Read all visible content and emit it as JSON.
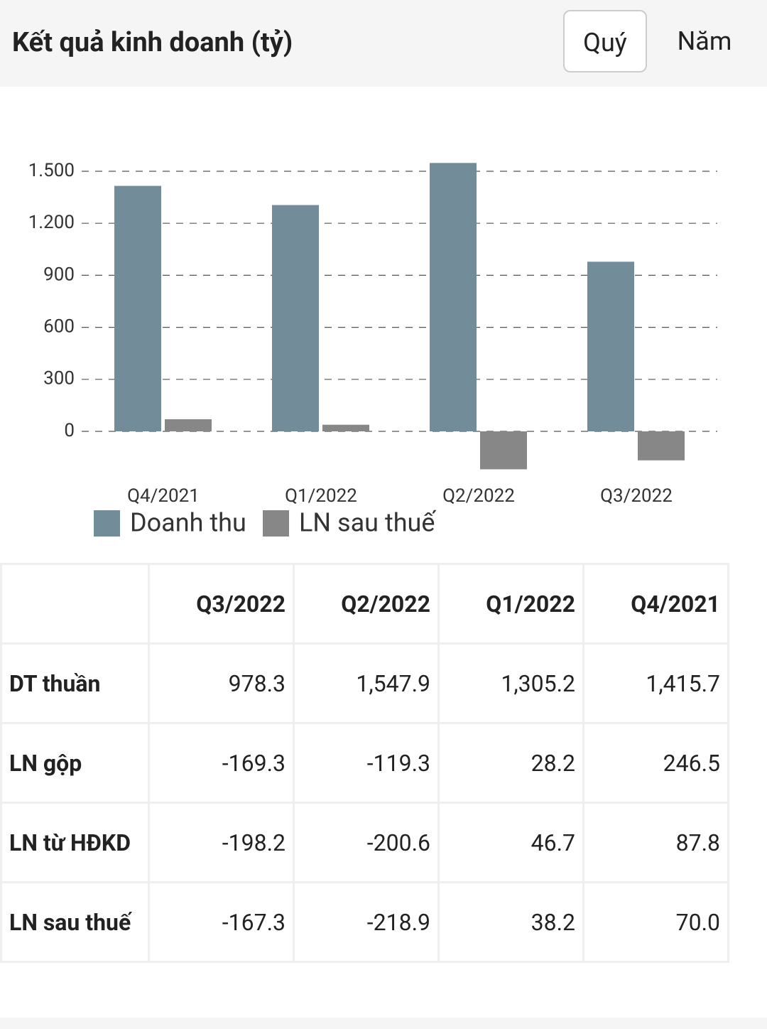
{
  "header": {
    "title": "Kết quả kinh doanh (tỷ)",
    "tabs": [
      "Quý",
      "Năm"
    ]
  },
  "chart_data": {
    "type": "bar",
    "categories": [
      "Q4/2021",
      "Q1/2022",
      "Q2/2022",
      "Q3/2022"
    ],
    "series": [
      {
        "name": "Doanh thu",
        "color": "#728c99",
        "values": [
          1415.7,
          1305.2,
          1547.9,
          978.3
        ]
      },
      {
        "name": "LN sau thuế",
        "color": "#878787",
        "values": [
          70.0,
          38.2,
          -218.9,
          -167.3
        ]
      }
    ],
    "ylim": [
      -250,
      1600
    ],
    "yticks": [
      0,
      300,
      600,
      900,
      {
        "value": 1200,
        "label": "1.200"
      },
      {
        "value": 1500,
        "label": "1.500"
      }
    ],
    "grid": true,
    "legend": "bottom-left"
  },
  "table": {
    "columns": [
      "Q3/2022",
      "Q2/2022",
      "Q1/2022",
      "Q4/2021"
    ],
    "rows": [
      {
        "label": "DT thuần",
        "cells": [
          "978.3",
          "1,547.9",
          "1,305.2",
          "1,415.7"
        ]
      },
      {
        "label": "LN gộp",
        "cells": [
          "-169.3",
          "-119.3",
          "28.2",
          "246.5"
        ]
      },
      {
        "label": "LN từ HĐKD",
        "cells": [
          "-198.2",
          "-200.6",
          "46.7",
          "87.8"
        ]
      },
      {
        "label": "LN sau thuế",
        "cells": [
          "-167.3",
          "-218.9",
          "38.2",
          "70.0"
        ]
      }
    ]
  }
}
